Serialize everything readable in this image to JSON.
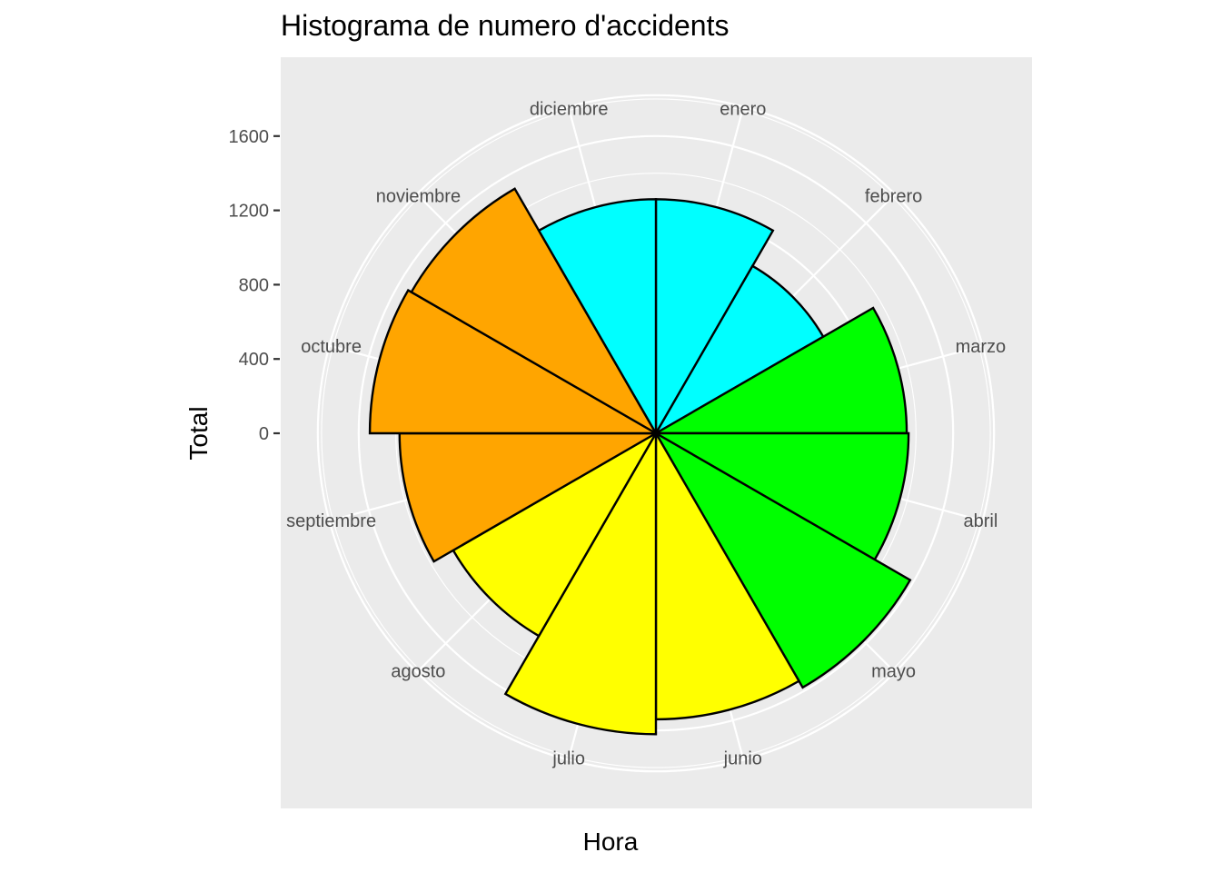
{
  "chart_data": {
    "type": "bar",
    "coord": "polar",
    "title": "Histograma de numero d'accidents",
    "xlabel": "Hora",
    "ylabel": "Total",
    "categories": [
      "enero",
      "febrero",
      "marzo",
      "abril",
      "mayo",
      "junio",
      "julio",
      "agosto",
      "septiembre",
      "octubre",
      "noviembre",
      "diciembre"
    ],
    "values": [
      1260,
      1040,
      1350,
      1360,
      1580,
      1540,
      1620,
      1260,
      1380,
      1540,
      1520,
      1260
    ],
    "fills": [
      "#00FFFF",
      "#00FFFF",
      "#00FF00",
      "#00FF00",
      "#00FF00",
      "#FFFF00",
      "#FFFF00",
      "#FFFF00",
      "#FFA500",
      "#FFA500",
      "#FFA500",
      "#00FFFF"
    ],
    "y_ticks": [
      0,
      400,
      800,
      1200,
      1600
    ],
    "ylim": [
      0,
      1820
    ],
    "grid": true,
    "legend": "none"
  }
}
